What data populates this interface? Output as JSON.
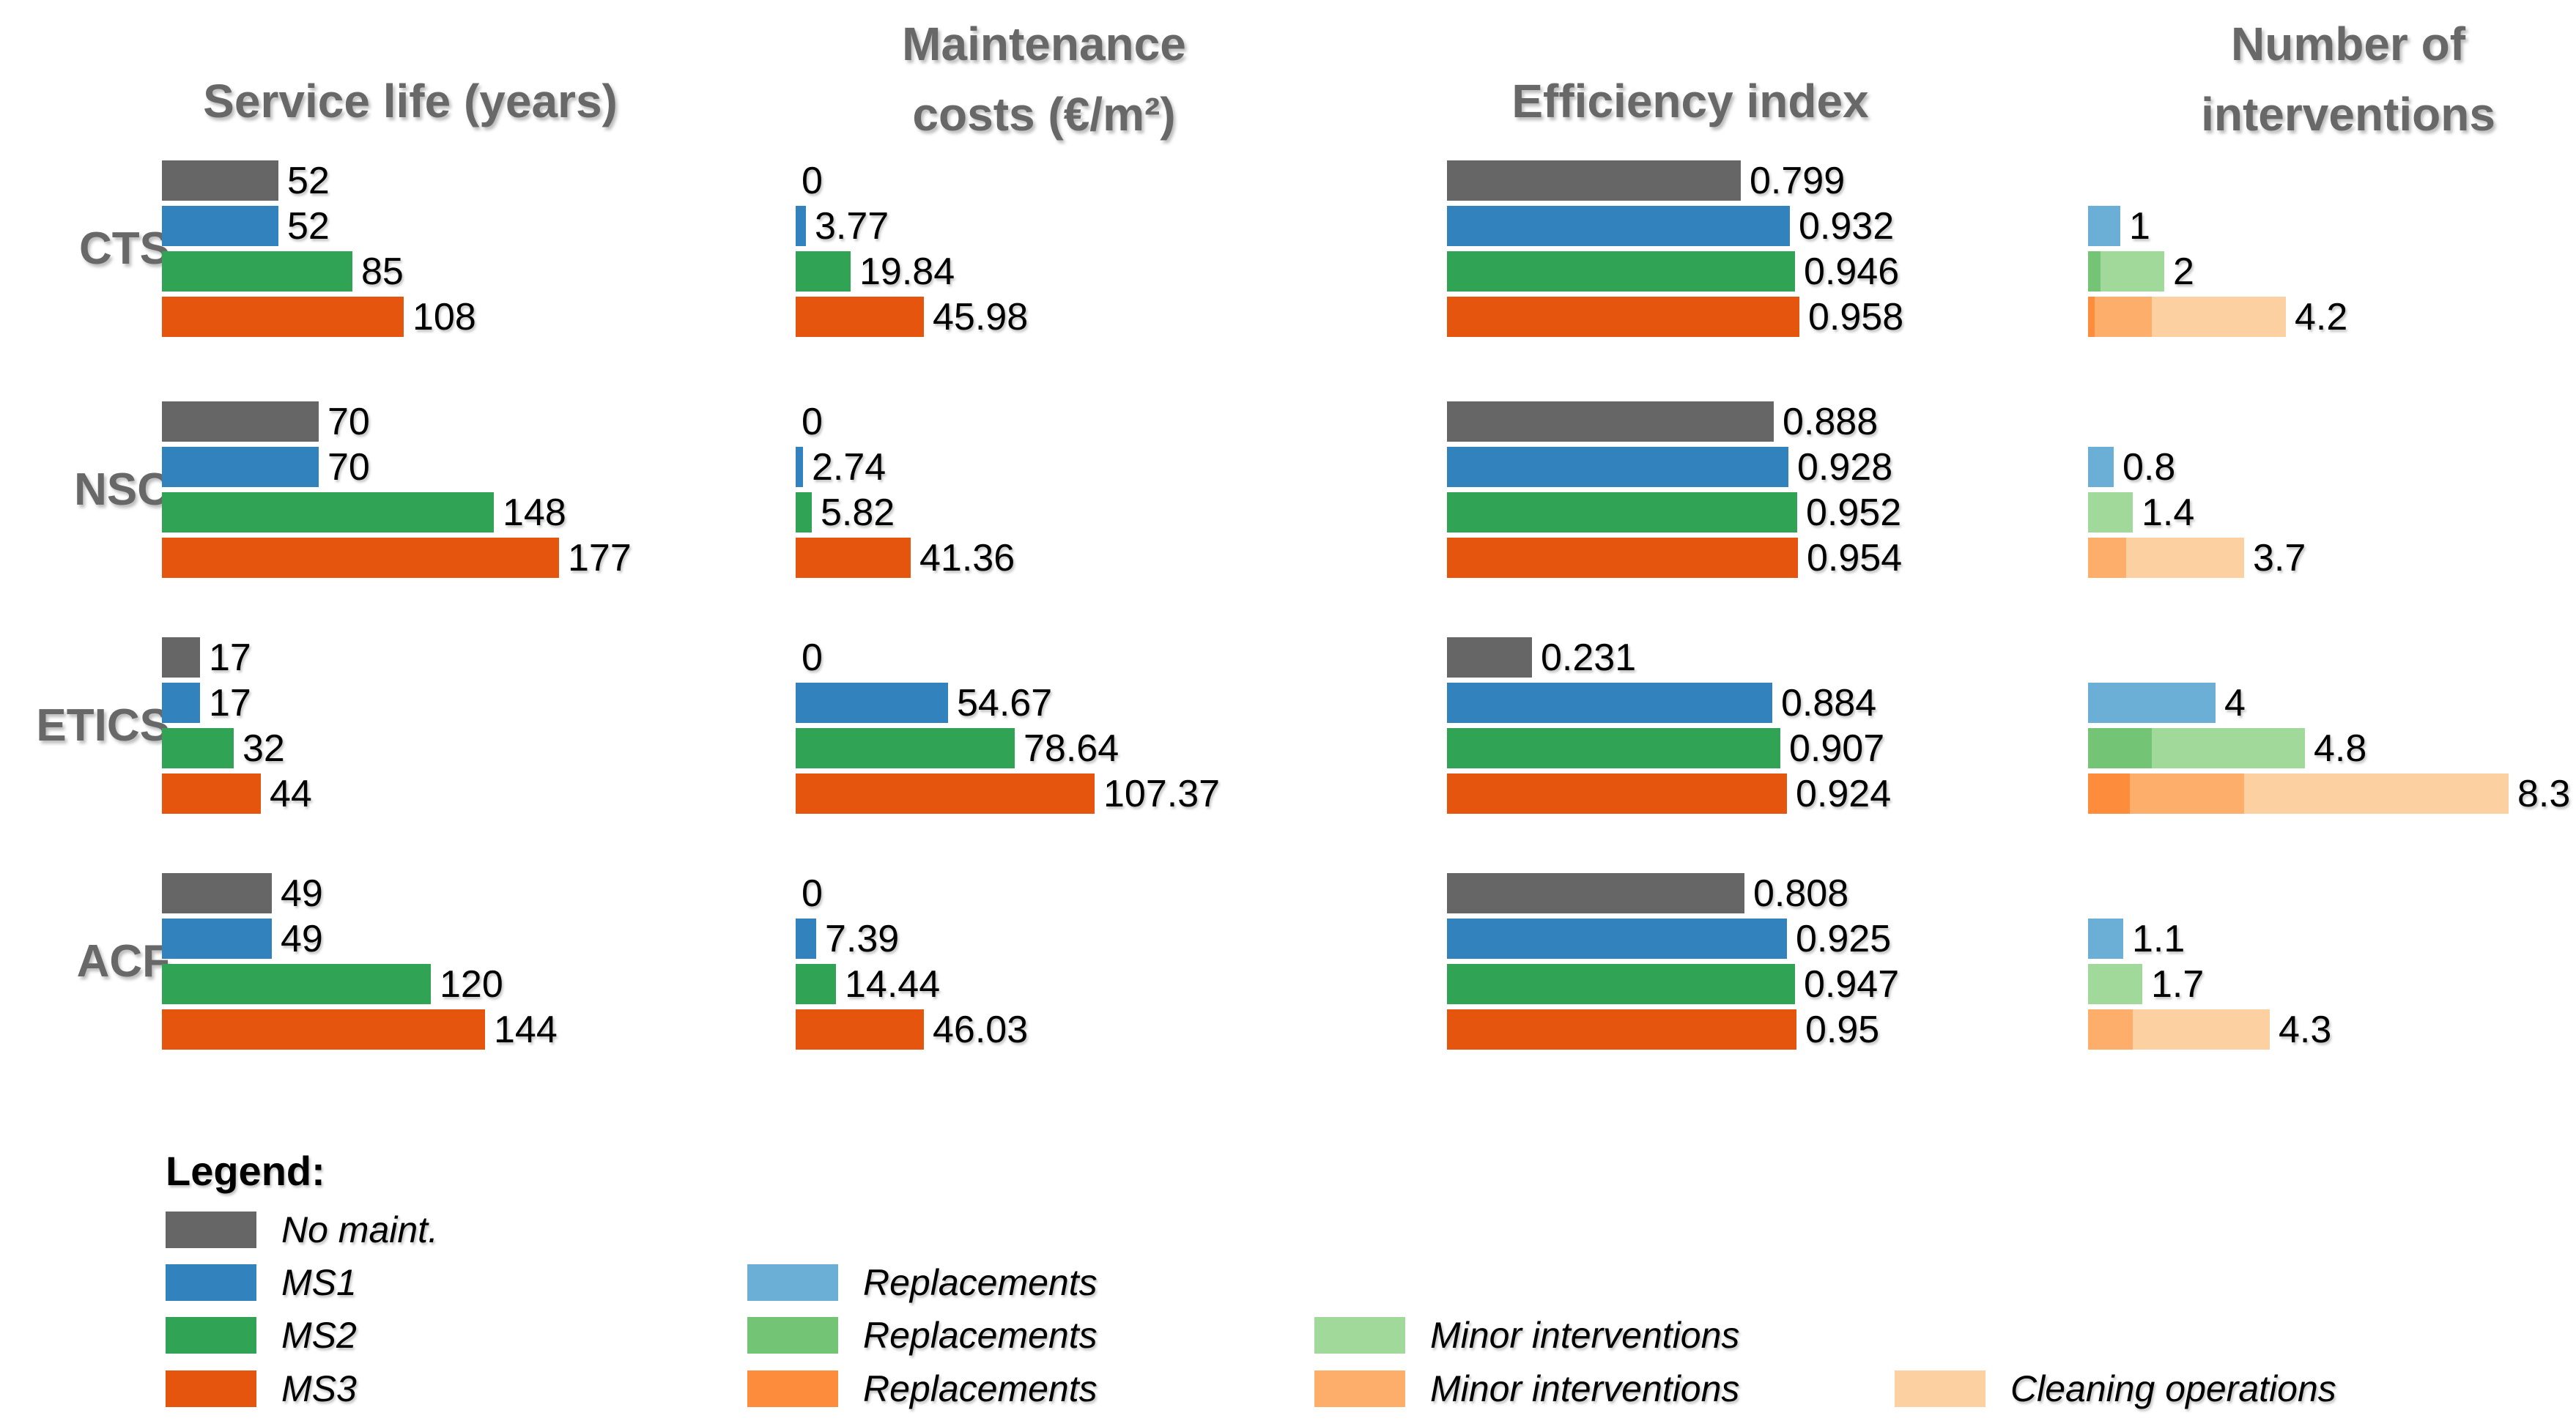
{
  "colors": {
    "no_maint": "#666666",
    "ms1": "#3182bd",
    "ms2": "#31a354",
    "ms3": "#e6550d",
    "ms1_replacements": "#6baed6",
    "ms2_replacements": "#74c476",
    "ms2_minor": "#a1d99b",
    "ms3_replacements": "#fd8d3c",
    "ms3_minor": "#fdae6b",
    "ms3_cleaning": "#fdd0a2",
    "title_text": "#686868",
    "value_text": "#000000",
    "background": "#ffffff"
  },
  "chart_data": {
    "type": "bar",
    "orientation": "horizontal",
    "grid": false,
    "axes_visible": false,
    "value_labels": true,
    "groups": [
      "CTS",
      "NSC",
      "ETICS",
      "ACF"
    ],
    "series": [
      "No maint.",
      "MS1",
      "MS2",
      "MS3"
    ],
    "panels": [
      {
        "id": "service_life",
        "title": "Service life (years)",
        "title_lines": [
          "Service life (years)"
        ],
        "kind": "simple",
        "xlim": [
          0,
          177
        ],
        "rows": [
          {
            "group": "CTS",
            "values": [
              52,
              52,
              85,
              108
            ],
            "labels": [
              "52",
              "52",
              "85",
              "108"
            ]
          },
          {
            "group": "NSC",
            "values": [
              70,
              70,
              148,
              177
            ],
            "labels": [
              "70",
              "70",
              "148",
              "177"
            ]
          },
          {
            "group": "ETICS",
            "values": [
              17,
              17,
              32,
              44
            ],
            "labels": [
              "17",
              "17",
              "32",
              "44"
            ]
          },
          {
            "group": "ACF",
            "values": [
              49,
              49,
              120,
              144
            ],
            "labels": [
              "49",
              "49",
              "120",
              "144"
            ]
          }
        ]
      },
      {
        "id": "maintenance_costs",
        "title": "Maintenance costs (€/m²)",
        "title_lines": [
          "Maintenance",
          "costs (€/m²)"
        ],
        "kind": "simple",
        "xlim": [
          0,
          107.37
        ],
        "rows": [
          {
            "group": "CTS",
            "values": [
              0,
              3.77,
              19.84,
              45.98
            ],
            "labels": [
              "0",
              "3.77",
              "19.84",
              "45.98"
            ]
          },
          {
            "group": "NSC",
            "values": [
              0,
              2.74,
              5.82,
              41.36
            ],
            "labels": [
              "0",
              "2.74",
              "5.82",
              "41.36"
            ]
          },
          {
            "group": "ETICS",
            "values": [
              0,
              54.67,
              78.64,
              107.37
            ],
            "labels": [
              "0",
              "54.67",
              "78.64",
              "107.37"
            ]
          },
          {
            "group": "ACF",
            "values": [
              0,
              7.39,
              14.44,
              46.03
            ],
            "labels": [
              "0",
              "7.39",
              "14.44",
              "46.03"
            ]
          }
        ]
      },
      {
        "id": "efficiency_index",
        "title": "Efficiency index",
        "title_lines": [
          "Efficiency index"
        ],
        "kind": "simple",
        "xlim": [
          0,
          0.958
        ],
        "rows": [
          {
            "group": "CTS",
            "values": [
              0.799,
              0.932,
              0.946,
              0.958
            ],
            "labels": [
              "0.799",
              "0.932",
              "0.946",
              "0.958"
            ]
          },
          {
            "group": "NSC",
            "values": [
              0.888,
              0.928,
              0.952,
              0.954
            ],
            "labels": [
              "0.888",
              "0.928",
              "0.952",
              "0.954"
            ]
          },
          {
            "group": "ETICS",
            "values": [
              0.231,
              0.884,
              0.907,
              0.924
            ],
            "labels": [
              "0.231",
              "0.884",
              "0.907",
              "0.924"
            ]
          },
          {
            "group": "ACF",
            "values": [
              0.808,
              0.925,
              0.947,
              0.95
            ],
            "labels": [
              "0.808",
              "0.925",
              "0.947",
              "0.95"
            ]
          }
        ]
      },
      {
        "id": "number_of_interventions",
        "title": "Number of interventions",
        "title_lines": [
          "Number of",
          "interventions"
        ],
        "kind": "stacked",
        "xlim": [
          0,
          13.2
        ],
        "rows": [
          {
            "group": "CTS",
            "bars": [
              {
                "series": "MS1",
                "segments": [
                  {
                    "name": "Replacements",
                    "value": 1,
                    "label": "1"
                  }
                ]
              },
              {
                "series": "MS2",
                "segments": [
                  {
                    "name": "Replacements",
                    "value": 0.4,
                    "label": "0.4"
                  },
                  {
                    "name": "Minor interventions",
                    "value": 2,
                    "label": "2"
                  }
                ]
              },
              {
                "series": "MS3",
                "segments": [
                  {
                    "name": "Replacements",
                    "value": 0.2,
                    "label": "0.2"
                  },
                  {
                    "name": "Minor interventions",
                    "value": 1.8,
                    "label": "1.8"
                  },
                  {
                    "name": "Cleaning operations",
                    "value": 4.2,
                    "label": "4.2"
                  }
                ]
              }
            ]
          },
          {
            "group": "NSC",
            "bars": [
              {
                "series": "MS1",
                "segments": [
                  {
                    "name": "Replacements",
                    "value": 0.8,
                    "label": "0.8"
                  }
                ]
              },
              {
                "series": "MS2",
                "segments": [
                  {
                    "name": "Replacements",
                    "value": 0,
                    "label": "0"
                  },
                  {
                    "name": "Minor interventions",
                    "value": 1.4,
                    "label": "1.4"
                  }
                ]
              },
              {
                "series": "MS3",
                "segments": [
                  {
                    "name": "Replacements",
                    "value": 0,
                    "label": "0"
                  },
                  {
                    "name": "Minor interventions",
                    "value": 1.2,
                    "label": "1.2"
                  },
                  {
                    "name": "Cleaning operations",
                    "value": 3.7,
                    "label": "3.7"
                  }
                ]
              }
            ]
          },
          {
            "group": "ETICS",
            "bars": [
              {
                "series": "MS1",
                "segments": [
                  {
                    "name": "Replacements",
                    "value": 4,
                    "label": "4"
                  }
                ]
              },
              {
                "series": "MS2",
                "segments": [
                  {
                    "name": "Replacements",
                    "value": 2,
                    "label": "2"
                  },
                  {
                    "name": "Minor interventions",
                    "value": 4.8,
                    "label": "4.8"
                  }
                ]
              },
              {
                "series": "MS3",
                "segments": [
                  {
                    "name": "Replacements",
                    "value": 1.3,
                    "label": "1.3"
                  },
                  {
                    "name": "Minor interventions",
                    "value": 3.6,
                    "label": "3.6"
                  },
                  {
                    "name": "Cleaning operations",
                    "value": 8.3,
                    "label": "8.3"
                  }
                ]
              }
            ]
          },
          {
            "group": "ACF",
            "bars": [
              {
                "series": "MS1",
                "segments": [
                  {
                    "name": "Replacements",
                    "value": 1.1,
                    "label": "1.1"
                  }
                ]
              },
              {
                "series": "MS2",
                "segments": [
                  {
                    "name": "Replacements",
                    "value": 0,
                    "label": "0"
                  },
                  {
                    "name": "Minor interventions",
                    "value": 1.7,
                    "label": "1.7"
                  }
                ]
              },
              {
                "series": "MS3",
                "segments": [
                  {
                    "name": "Replacements",
                    "value": 0,
                    "label": "0"
                  },
                  {
                    "name": "Minor interventions",
                    "value": 1.4,
                    "label": "1.4"
                  },
                  {
                    "name": "Cleaning operations",
                    "value": 4.3,
                    "label": "4.3"
                  }
                ]
              }
            ]
          }
        ]
      }
    ]
  },
  "legend": {
    "title": "Legend:",
    "rows": [
      [
        {
          "name": "No maint.",
          "color_key": "no_maint"
        }
      ],
      [
        {
          "name": "MS1",
          "color_key": "ms1"
        },
        {
          "name": "Replacements",
          "color_key": "ms1_replacements"
        }
      ],
      [
        {
          "name": "MS2",
          "color_key": "ms2"
        },
        {
          "name": "Replacements",
          "color_key": "ms2_replacements"
        },
        {
          "name": "Minor interventions",
          "color_key": "ms2_minor"
        }
      ],
      [
        {
          "name": "MS3",
          "color_key": "ms3"
        },
        {
          "name": "Replacements",
          "color_key": "ms3_replacements"
        },
        {
          "name": "Minor interventions",
          "color_key": "ms3_minor"
        },
        {
          "name": "Cleaning operations",
          "color_key": "ms3_cleaning"
        }
      ]
    ]
  }
}
